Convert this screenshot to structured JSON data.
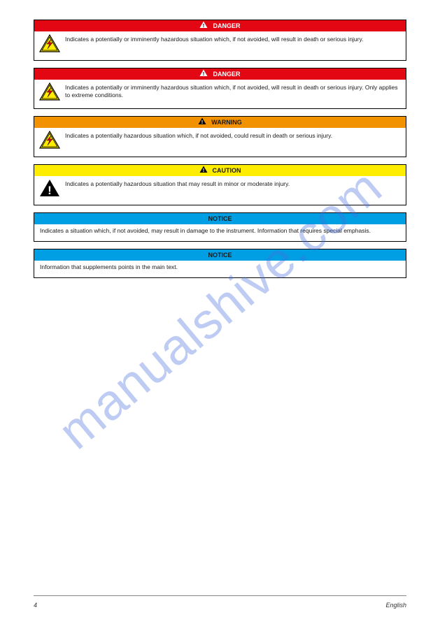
{
  "colors": {
    "danger_bg": "#e30613",
    "warning_bg": "#f39200",
    "caution_bg": "#ffed00",
    "notice_bg": "#009fe3",
    "border": "#000000",
    "text": "#1a1a1a",
    "header_text_light": "#ffffff",
    "watermark": "rgba(70,110,220,0.35)"
  },
  "watermark": "manualshive.com",
  "boxes": [
    {
      "type": "danger",
      "header_bg": "#e30613",
      "header_label": "DANGER",
      "header_text_color": "#ffffff",
      "warn_triangle_fill": "#ffffff",
      "warn_triangle_glyph": "!",
      "icon": "bolt",
      "body": "Indicates a potentially or imminently hazardous situation which, if not avoided, will result in death or serious injury."
    },
    {
      "type": "danger",
      "header_bg": "#e30613",
      "header_label": "DANGER",
      "header_text_color": "#ffffff",
      "warn_triangle_fill": "#ffffff",
      "warn_triangle_glyph": "!",
      "icon": "bolt",
      "body": "Indicates a potentially or imminently hazardous situation which, if not avoided, will result in death or serious injury. Only applies to extreme conditions."
    },
    {
      "type": "warning",
      "header_bg": "#f39200",
      "header_label": "WARNING",
      "header_text_color": "#1a1a1a",
      "warn_triangle_fill": "#000000",
      "warn_triangle_glyph": "!",
      "icon": "bolt",
      "body": "Indicates a potentially hazardous situation which, if not avoided, could result in death or serious injury."
    },
    {
      "type": "caution",
      "header_bg": "#ffed00",
      "header_label": "CAUTION",
      "header_text_color": "#1a1a1a",
      "warn_triangle_fill": "#000000",
      "warn_triangle_glyph": "!",
      "icon": "exclaim",
      "body": "Indicates a potentially hazardous situation that may result in minor or moderate injury."
    },
    {
      "type": "notice",
      "header_bg": "#009fe3",
      "header_label": "NOTICE",
      "header_text_color": "#1a1a1a",
      "icon": null,
      "body": "Indicates a situation which, if not avoided, may result in damage to the instrument. Information that requires special emphasis."
    },
    {
      "type": "notice",
      "header_bg": "#009fe3",
      "header_label": "NOTICE",
      "header_text_color": "#1a1a1a",
      "icon": null,
      "body": "Information that supplements points in the main text."
    }
  ],
  "footer": {
    "page": "4",
    "lang": "English"
  }
}
